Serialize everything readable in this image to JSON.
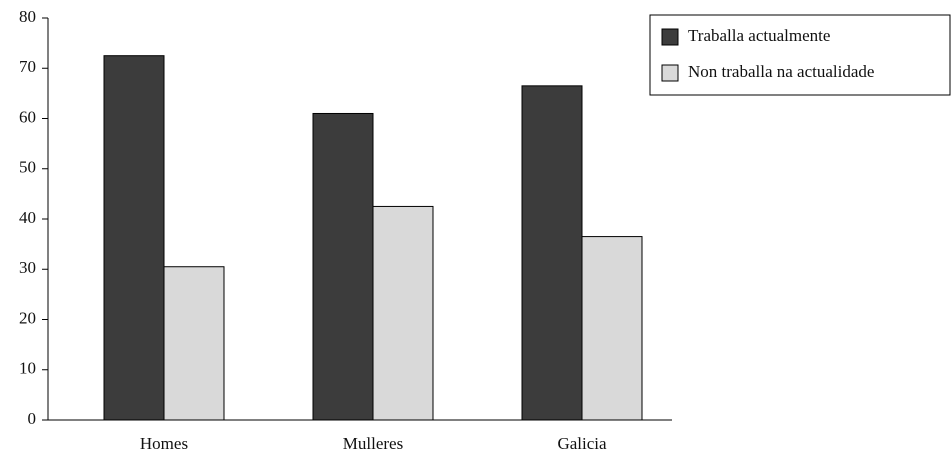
{
  "chart_data": {
    "type": "bar",
    "categories": [
      "Homes",
      "Mulleres",
      "Galicia"
    ],
    "series": [
      {
        "name": "Traballa actualmente",
        "color": "#3c3c3c",
        "values": [
          72.5,
          61,
          66.5
        ]
      },
      {
        "name": "Non traballa na actualidade",
        "color": "#d9d9d9",
        "values": [
          30.5,
          42.5,
          36.5
        ]
      }
    ],
    "ylim": [
      0,
      80
    ],
    "yticks": [
      0,
      10,
      20,
      30,
      40,
      50,
      60,
      70,
      80
    ],
    "grid": false,
    "legend": "upper right"
  }
}
